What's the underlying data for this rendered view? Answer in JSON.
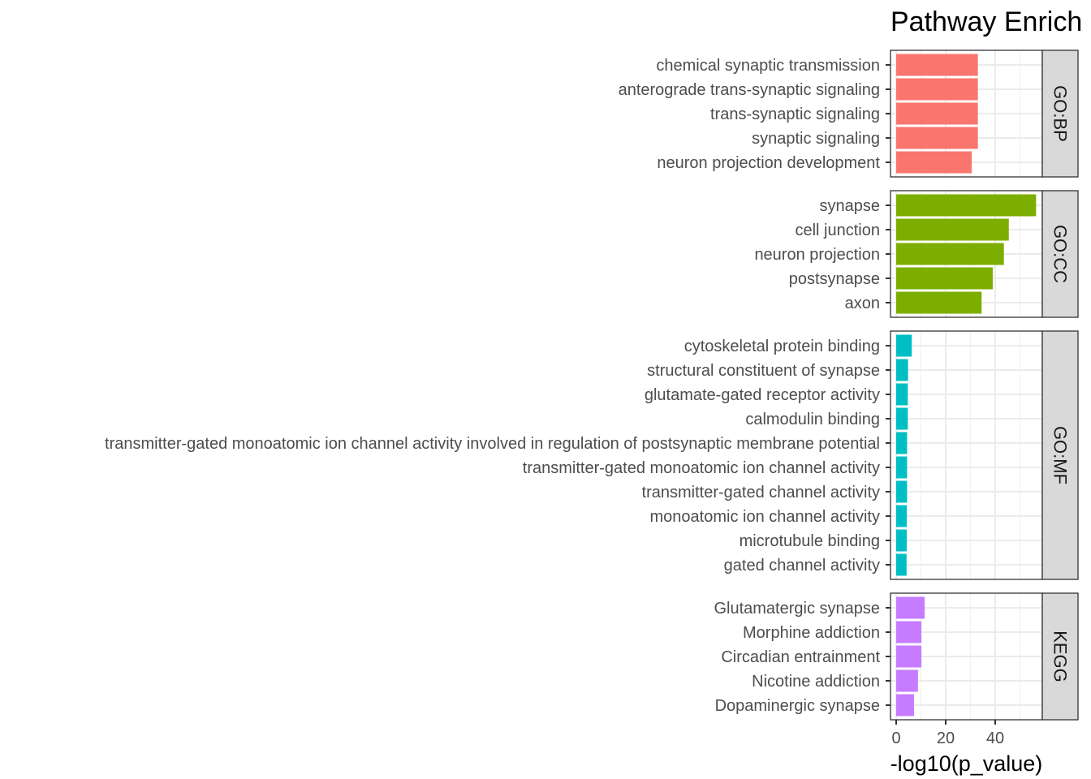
{
  "chart_data": {
    "type": "bar",
    "orientation": "horizontal",
    "title": "Pathway Enrich",
    "xlabel": "-log10(p_value)",
    "ylabel": "",
    "xlim": [
      0,
      59
    ],
    "xticks": [
      0,
      20,
      40
    ],
    "grid": true,
    "legend": "none",
    "facets": [
      {
        "name": "GO:BP",
        "color": "#F8766D",
        "categories": [
          "chemical synaptic transmission",
          "anterograde trans-synaptic signaling",
          "trans-synaptic signaling",
          "synaptic signaling",
          "neuron projection development"
        ],
        "values": [
          33,
          33,
          33,
          33,
          30.5
        ]
      },
      {
        "name": "GO:CC",
        "color": "#7CAE00",
        "categories": [
          "synapse",
          "cell junction",
          "neuron projection",
          "postsynapse",
          "axon"
        ],
        "values": [
          56.5,
          45.5,
          43.5,
          39,
          34.5
        ]
      },
      {
        "name": "GO:MF",
        "color": "#00BFC4",
        "categories": [
          "cytoskeletal protein binding",
          "structural constituent of synapse",
          "glutamate-gated receptor activity",
          "calmodulin binding",
          "transmitter-gated monoatomic ion channel activity involved in regulation of postsynaptic membrane potential",
          "transmitter-gated monoatomic ion channel activity",
          "transmitter-gated channel activity",
          "monoatomic ion channel activity",
          "microtubule binding",
          "gated channel activity"
        ],
        "values": [
          6.3,
          4.8,
          4.7,
          4.7,
          4.4,
          4.4,
          4.4,
          4.3,
          4.3,
          4.2
        ]
      },
      {
        "name": "KEGG",
        "color": "#C77CFF",
        "categories": [
          "Glutamatergic synapse",
          "Morphine addiction",
          "Circadian entrainment",
          "Nicotine addiction",
          "Dopaminergic synapse"
        ],
        "values": [
          11.5,
          10.2,
          10.2,
          8.8,
          7.2
        ]
      }
    ]
  }
}
